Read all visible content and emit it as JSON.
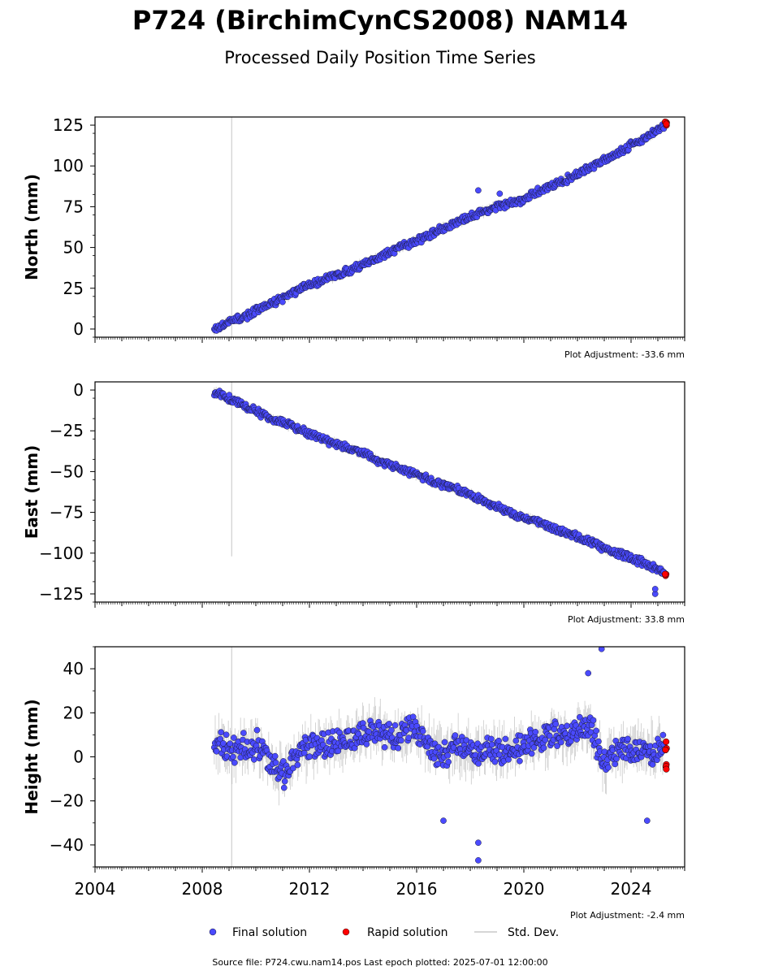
{
  "title": "P724 (BirchimCynCS2008) NAM14",
  "subtitle": "Processed Daily Position Time Series",
  "footer": "Source file: P724.cwu.nam14.pos  Last epoch plotted: 2025-07-01 12:00:00",
  "legend": {
    "final": "Final solution",
    "rapid": "Rapid solution",
    "std": "Std. Dev."
  },
  "colors": {
    "final": "#4a4aff",
    "rapid": "#ff0000",
    "std": "#b4b4b4"
  },
  "chart_data": [
    {
      "type": "scatter",
      "ylabel": "North (mm)",
      "adjustment": "Plot Adjustment: -33.6 mm",
      "xlim": [
        2004,
        2026
      ],
      "ylim": [
        -5,
        130
      ],
      "yticks": [
        0,
        25,
        50,
        75,
        100,
        125
      ],
      "ytick_labels": [
        "0",
        "25",
        "50",
        "75",
        "100",
        "125"
      ],
      "series": [
        {
          "name": "Final solution",
          "x": [
            2008.5,
            2009.0,
            2009.5,
            2010.0,
            2010.5,
            2011.0,
            2011.5,
            2012.0,
            2012.5,
            2013.0,
            2013.5,
            2014.0,
            2014.5,
            2015.0,
            2015.5,
            2016.0,
            2016.5,
            2017.0,
            2017.5,
            2018.0,
            2018.5,
            2019.0,
            2019.5,
            2020.0,
            2020.5,
            2021.0,
            2021.5,
            2022.0,
            2022.5,
            2023.0,
            2023.5,
            2024.0,
            2024.5,
            2025.0
          ],
          "y": [
            0,
            4,
            7,
            11,
            15,
            19,
            23,
            27,
            30,
            33,
            36,
            40,
            43,
            47,
            51,
            54,
            58,
            62,
            65,
            69,
            72,
            75,
            77,
            79,
            84,
            88,
            91,
            95,
            99,
            104,
            108,
            113,
            117,
            122
          ]
        },
        {
          "name": "Rapid solution",
          "x": [
            2025.3
          ],
          "y": [
            126
          ]
        }
      ],
      "outliers": [
        {
          "x": 2018.3,
          "y": 85
        },
        {
          "x": 2019.1,
          "y": 83
        }
      ]
    },
    {
      "type": "scatter",
      "ylabel": "East (mm)",
      "adjustment": "Plot Adjustment: 33.8 mm",
      "xlim": [
        2004,
        2026
      ],
      "ylim": [
        -130,
        5
      ],
      "yticks": [
        0,
        -25,
        -50,
        -75,
        -100,
        -125
      ],
      "ytick_labels": [
        "0",
        "−25",
        "−50",
        "−75",
        "−100",
        "−125"
      ],
      "series": [
        {
          "name": "Final solution",
          "x": [
            2008.5,
            2009.0,
            2009.5,
            2010.0,
            2010.5,
            2011.0,
            2011.5,
            2012.0,
            2012.5,
            2013.0,
            2013.5,
            2014.0,
            2014.5,
            2015.0,
            2015.5,
            2016.0,
            2016.5,
            2017.0,
            2017.5,
            2018.0,
            2018.5,
            2019.0,
            2019.5,
            2020.0,
            2020.5,
            2021.0,
            2021.5,
            2022.0,
            2022.5,
            2023.0,
            2023.5,
            2024.0,
            2024.5,
            2025.0
          ],
          "y": [
            -1,
            -5,
            -9,
            -13,
            -17,
            -20,
            -23,
            -27,
            -30,
            -33,
            -36,
            -39,
            -43,
            -46,
            -49,
            -52,
            -55,
            -58,
            -61,
            -64,
            -68,
            -72,
            -75,
            -78,
            -81,
            -84,
            -87,
            -90,
            -93,
            -97,
            -100,
            -103,
            -106,
            -110
          ]
        },
        {
          "name": "Rapid solution",
          "x": [
            2025.3
          ],
          "y": [
            -114
          ]
        }
      ],
      "outliers": [
        {
          "x": 2024.9,
          "y": -125
        },
        {
          "x": 2024.9,
          "y": -122
        }
      ]
    },
    {
      "type": "scatter",
      "ylabel": "Height (mm)",
      "adjustment": "Plot Adjustment: -2.4 mm",
      "xlim": [
        2004,
        2026
      ],
      "ylim": [
        -50,
        50
      ],
      "yticks": [
        40,
        20,
        0,
        -20,
        -40
      ],
      "ytick_labels": [
        "40",
        "20",
        "0",
        "−20",
        "−40"
      ],
      "xticks": [
        2004,
        2008,
        2012,
        2016,
        2020,
        2024
      ],
      "xtick_labels": [
        "2004",
        "2008",
        "2012",
        "2016",
        "2020",
        "2024"
      ],
      "series": [
        {
          "name": "Final solution",
          "x": [
            2008.5,
            2009.0,
            2009.5,
            2010.0,
            2010.5,
            2011.0,
            2011.5,
            2012.0,
            2012.5,
            2013.0,
            2013.5,
            2014.0,
            2014.5,
            2015.0,
            2015.5,
            2016.0,
            2016.5,
            2017.0,
            2017.5,
            2018.0,
            2018.5,
            2019.0,
            2019.5,
            2020.0,
            2020.5,
            2021.0,
            2021.5,
            2022.0,
            2022.5,
            2023.0,
            2023.5,
            2024.0,
            2024.5,
            2025.0
          ],
          "y": [
            8,
            2,
            4,
            6,
            -2,
            -8,
            2,
            3,
            5,
            6,
            8,
            10,
            12,
            9,
            12,
            13,
            4,
            2,
            5,
            1,
            3,
            2,
            4,
            5,
            7,
            10,
            9,
            12,
            14,
            -3,
            3,
            4,
            2,
            3
          ]
        },
        {
          "name": "Rapid solution",
          "x": [
            2025.3
          ],
          "y": [
            1
          ]
        }
      ],
      "outliers": [
        {
          "x": 2018.3,
          "y": -47
        },
        {
          "x": 2018.3,
          "y": -39
        },
        {
          "x": 2022.9,
          "y": 49
        },
        {
          "x": 2022.4,
          "y": 38
        },
        {
          "x": 2017.0,
          "y": -29
        },
        {
          "x": 2024.6,
          "y": -29
        }
      ]
    }
  ]
}
